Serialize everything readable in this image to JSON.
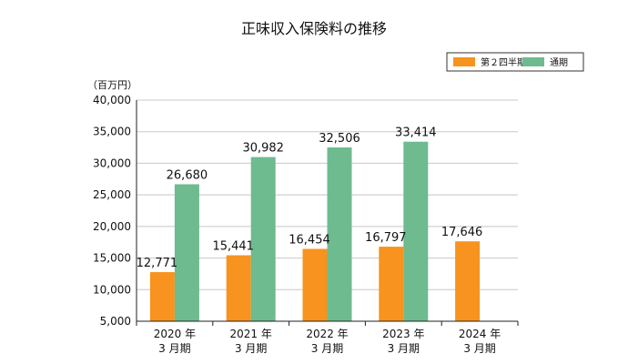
{
  "chart_data": {
    "type": "bar",
    "title": "正味収入保険料の推移",
    "ylabel": "（百万円）",
    "ylim": [
      5000,
      40000
    ],
    "yticks": [
      "5,000",
      "10,000",
      "15,000",
      "20,000",
      "25,000",
      "30,000",
      "35,000",
      "40,000"
    ],
    "grid": true,
    "legend_position": "top-right",
    "categories": [
      {
        "line1": "2020 年",
        "line2": "3 月期"
      },
      {
        "line1": "2021 年",
        "line2": "3 月期"
      },
      {
        "line1": "2022 年",
        "line2": "3 月期"
      },
      {
        "line1": "2023 年",
        "line2": "3 月期"
      },
      {
        "line1": "2024 年",
        "line2": "3 月期"
      }
    ],
    "series": [
      {
        "name": "第２四半期",
        "color": "#f7931e",
        "values": [
          12771,
          15441,
          16454,
          16797,
          17646
        ],
        "labels": [
          "12,771",
          "15,441",
          "16,454",
          "16,797",
          "17,646"
        ]
      },
      {
        "name": "通期",
        "color": "#6dbb8f",
        "values": [
          26680,
          30982,
          32506,
          33414,
          null
        ],
        "labels": [
          "26,680",
          "30,982",
          "32,506",
          "33,414",
          ""
        ]
      }
    ]
  }
}
